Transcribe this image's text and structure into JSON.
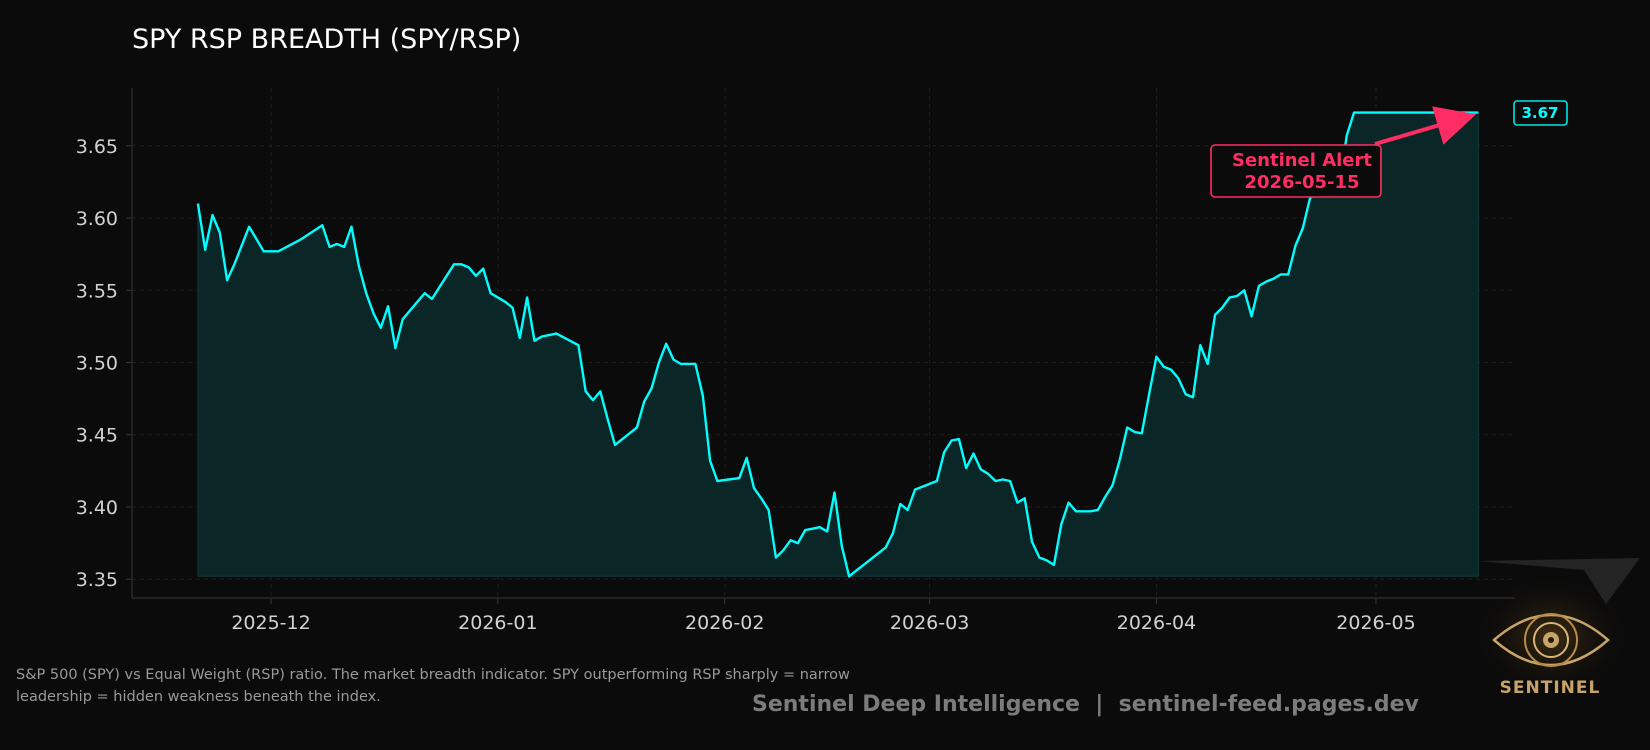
{
  "header": {
    "title": "SPY RSP BREADTH (SPY/RSP)"
  },
  "caption": {
    "text": "S&P 500 (SPY) vs Equal Weight (RSP) ratio. The market breadth indicator. SPY outperforming RSP sharply = narrow leadership = hidden weakness beneath the index."
  },
  "footer": {
    "text": "Sentinel Deep Intelligence  |  sentinel-feed.pages.dev"
  },
  "logo": {
    "wordmark": "SENTINEL"
  },
  "colors": {
    "background": "#0b0b0b",
    "line": "#00ffff",
    "area": "#0a2626",
    "alert": "#ff2d63",
    "gold": "#c9a46a"
  },
  "chart_data": {
    "type": "area",
    "title": "SPY RSP BREADTH (SPY/RSP)",
    "xlabel": "",
    "ylabel": "",
    "grid": true,
    "ylim": [
      3.337,
      3.69
    ],
    "xlim": [
      "2025-11-12",
      "2026-05-20"
    ],
    "y_ticks": [
      3.35,
      3.4,
      3.45,
      3.5,
      3.55,
      3.6,
      3.65
    ],
    "y_tick_labels": [
      "3.35",
      "3.40",
      "3.45",
      "3.50",
      "3.55",
      "3.60",
      "3.65"
    ],
    "x_ticks": [
      "2025-12-01",
      "2026-01-01",
      "2026-02-01",
      "2026-03-01",
      "2026-04-01",
      "2026-05-01"
    ],
    "x_tick_labels": [
      "2025-12",
      "2026-01",
      "2026-02",
      "2026-03",
      "2026-04",
      "2026-05"
    ],
    "area_baseline": 3.352,
    "last_value_label": "3.67",
    "annotation": {
      "text_line1": "Sentinel Alert",
      "text_line2": "2026-05-15",
      "x": "2026-05-15",
      "y": 3.673
    },
    "series": [
      {
        "x": [
          "2025-11-21",
          "2025-11-22",
          "2025-11-23",
          "2025-11-24",
          "2025-11-25",
          "2025-11-26",
          "2025-11-28",
          "2025-11-30",
          "2025-12-01",
          "2025-12-02",
          "2025-12-05",
          "2025-12-08",
          "2025-12-09",
          "2025-12-10",
          "2025-12-11",
          "2025-12-12",
          "2025-12-13",
          "2025-12-14",
          "2025-12-15",
          "2025-12-16",
          "2025-12-17",
          "2025-12-18",
          "2025-12-19",
          "2025-12-22",
          "2025-12-23",
          "2025-12-26",
          "2025-12-27",
          "2025-12-28",
          "2025-12-29",
          "2025-12-30",
          "2025-12-31",
          "2026-01-02",
          "2026-01-03",
          "2026-01-04",
          "2026-01-05",
          "2026-01-06",
          "2026-01-07",
          "2026-01-08",
          "2026-01-09",
          "2026-01-12",
          "2026-01-13",
          "2026-01-14",
          "2026-01-15",
          "2026-01-16",
          "2026-01-17",
          "2026-01-20",
          "2026-01-21",
          "2026-01-22",
          "2026-01-23",
          "2026-01-24",
          "2026-01-25",
          "2026-01-26",
          "2026-01-27",
          "2026-01-28",
          "2026-01-29",
          "2026-01-30",
          "2026-01-31",
          "2026-02-03",
          "2026-02-04",
          "2026-02-05",
          "2026-02-06",
          "2026-02-07",
          "2026-02-08",
          "2026-02-09",
          "2026-02-10",
          "2026-02-11",
          "2026-02-12",
          "2026-02-13",
          "2026-02-14",
          "2026-02-15",
          "2026-02-16",
          "2026-02-17",
          "2026-02-18",
          "2026-02-19",
          "2026-02-20",
          "2026-02-23",
          "2026-02-24",
          "2026-02-25",
          "2026-02-26",
          "2026-02-27",
          "2026-03-02",
          "2026-03-03",
          "2026-03-04",
          "2026-03-05",
          "2026-03-06",
          "2026-03-07",
          "2026-03-08",
          "2026-03-09",
          "2026-03-10",
          "2026-03-11",
          "2026-03-12",
          "2026-03-13",
          "2026-03-14",
          "2026-03-15",
          "2026-03-16",
          "2026-03-17",
          "2026-03-18",
          "2026-03-19",
          "2026-03-20",
          "2026-03-21",
          "2026-03-23",
          "2026-03-24",
          "2026-03-25",
          "2026-03-26",
          "2026-03-27",
          "2026-03-28",
          "2026-03-29",
          "2026-03-30",
          "2026-03-31",
          "2026-04-01",
          "2026-04-02",
          "2026-04-03",
          "2026-04-04",
          "2026-04-05",
          "2026-04-06",
          "2026-04-07",
          "2026-04-08",
          "2026-04-09",
          "2026-04-10",
          "2026-04-11",
          "2026-04-12",
          "2026-04-13",
          "2026-04-14",
          "2026-04-15",
          "2026-04-16",
          "2026-04-17",
          "2026-04-18",
          "2026-04-19",
          "2026-04-20",
          "2026-04-21",
          "2026-04-22",
          "2026-04-23",
          "2026-04-24",
          "2026-04-25",
          "2026-04-26",
          "2026-04-27",
          "2026-04-28",
          "2026-04-29",
          "2026-04-30",
          "2026-05-01",
          "2026-05-02",
          "2026-05-03",
          "2026-05-04",
          "2026-05-05",
          "2026-05-06",
          "2026-05-07",
          "2026-05-08",
          "2026-05-09",
          "2026-05-10",
          "2026-05-11",
          "2026-05-12",
          "2026-05-13",
          "2026-05-14",
          "2026-05-15"
        ],
        "values": [
          3.61,
          3.578,
          3.602,
          3.59,
          3.557,
          3.568,
          3.594,
          3.577,
          3.577,
          3.577,
          3.585,
          3.595,
          3.58,
          3.582,
          3.58,
          3.594,
          3.567,
          3.548,
          3.534,
          3.524,
          3.539,
          3.51,
          3.53,
          3.548,
          3.544,
          3.568,
          3.568,
          3.566,
          3.56,
          3.565,
          3.548,
          3.542,
          3.538,
          3.517,
          3.545,
          3.515,
          3.518,
          3.519,
          3.52,
          3.512,
          3.48,
          3.474,
          3.48,
          3.461,
          3.443,
          3.455,
          3.473,
          3.482,
          3.5,
          3.513,
          3.502,
          3.499,
          3.499,
          3.499,
          3.477,
          3.432,
          3.418,
          3.42,
          3.434,
          3.413,
          3.406,
          3.398,
          3.365,
          3.37,
          3.377,
          3.375,
          3.384,
          3.385,
          3.386,
          3.383,
          3.41,
          3.373,
          3.352,
          3.356,
          3.36,
          3.372,
          3.382,
          3.402,
          3.398,
          3.412,
          3.418,
          3.438,
          3.446,
          3.447,
          3.427,
          3.437,
          3.426,
          3.423,
          3.418,
          3.419,
          3.418,
          3.403,
          3.406,
          3.376,
          3.365,
          3.363,
          3.36,
          3.388,
          3.403,
          3.397,
          3.397,
          3.398,
          3.407,
          3.415,
          3.433,
          3.455,
          3.452,
          3.451,
          3.478,
          3.504,
          3.497,
          3.495,
          3.489,
          3.478,
          3.476,
          3.512,
          3.499,
          3.533,
          3.538,
          3.545,
          3.546,
          3.55,
          3.532,
          3.553,
          3.556,
          3.558,
          3.561,
          3.561,
          3.581,
          3.593,
          3.614,
          3.617,
          3.62,
          3.624,
          3.622,
          3.657,
          3.673,
          3.673,
          3.673,
          3.673,
          3.673,
          3.673,
          3.673,
          3.673,
          3.673,
          3.673,
          3.673,
          3.673,
          3.673,
          3.673,
          3.673,
          3.673,
          3.673,
          3.673
        ]
      }
    ]
  }
}
